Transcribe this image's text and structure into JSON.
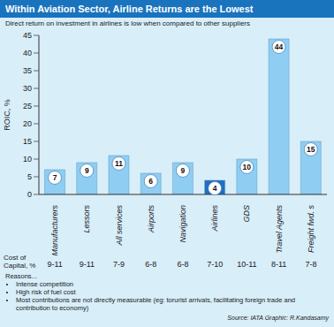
{
  "chart_data": {
    "type": "bar",
    "title": "Within Aviation Sector, Airline Returns are the Lowest",
    "subtitle": "Direct return on investment in airlines is low when compared to other suppliers",
    "categories": [
      "Manufacturers",
      "Lessors",
      "All services",
      "Airports",
      "Navigation",
      "Airlines",
      "GDS",
      "Travel Agents",
      "Freight fwd. s"
    ],
    "values": [
      7,
      9,
      11,
      6,
      9,
      4,
      10,
      44,
      15
    ],
    "colors": [
      "#8fcdf2",
      "#8fcdf2",
      "#8fcdf2",
      "#8fcdf2",
      "#8fcdf2",
      "#1f6fc0",
      "#8fcdf2",
      "#8fcdf2",
      "#8fcdf2"
    ],
    "ylabel": "ROIC, %",
    "ylim": [
      0,
      45
    ],
    "yticks": [
      0,
      5,
      10,
      15,
      20,
      25,
      30,
      35,
      40,
      45
    ],
    "grid": false,
    "data_labels": true,
    "cost_of_capital_label": "Cost of Capital, %",
    "cost_of_capital": [
      "9-11",
      "9-11",
      "7-9",
      "6-8",
      "6-8",
      "7-10",
      "10-11",
      "8-11",
      "7-8"
    ],
    "reasons_title": "Reasons...",
    "reasons": [
      "Intense competition",
      "High risk of fuel cost",
      "Most contributions are not directly measurable (eg: torurist arrivals, facilitating foreign trade and contribution to economy)"
    ],
    "source": "Source: IATA Graphic: R.Kandasamy"
  }
}
